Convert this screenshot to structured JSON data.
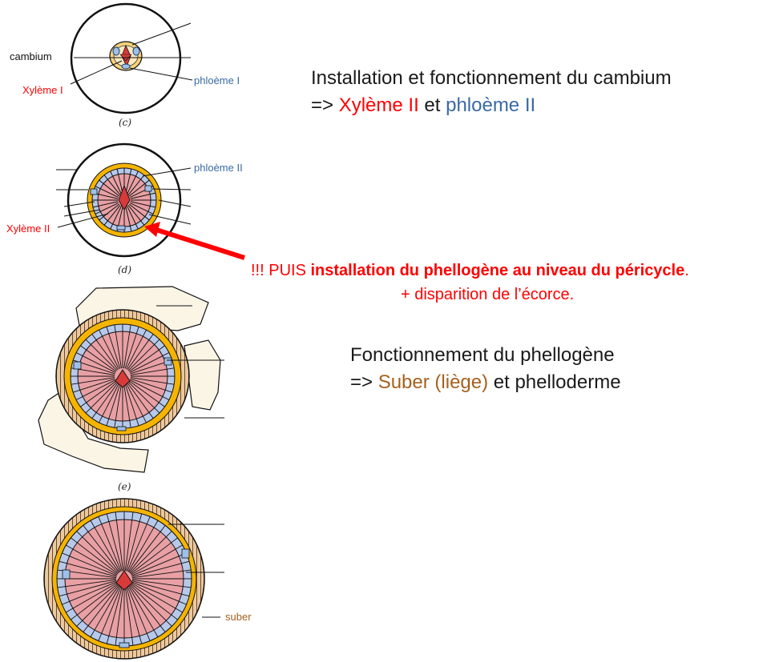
{
  "figures": {
    "c": {
      "caption": "(c)",
      "labels": {
        "cambium": "cambium",
        "xyleme": "Xylème I",
        "phloeme": "phloème I"
      }
    },
    "d": {
      "caption": "(d)",
      "labels": {
        "phloeme": "phloème II",
        "xyleme": "Xylème II"
      }
    },
    "e": {
      "caption": "(e)"
    },
    "f": {
      "labels": {
        "suber": "suber"
      }
    }
  },
  "text": {
    "cambium_line1": "Installation et fonctionnement du cambium",
    "cambium_arrow": "=> ",
    "cambium_xylem": "Xylème II",
    "cambium_et": " et ",
    "cambium_phloem": "phloème II",
    "warn_prefix": "!!! PUIS ",
    "warn_bold": "installation du phellogène au niveau du péricycle",
    "warn_suffix": ".",
    "warn_line2": "+ disparition de l’écorce.",
    "phello_line1": "Fonctionnement du phellogène",
    "phello_arrow": "=> ",
    "phello_suber": "Suber (liège)",
    "phello_rest": " et phelloderme"
  },
  "colors": {
    "xylem": "#ff0000",
    "phloem": "#3a6aa3",
    "suber": "#a5611e",
    "xylem_fill": "#e8a0a4",
    "phloem_fill": "#b7c9ea",
    "cambium_ring": "#f5b400",
    "cortex": "#fbf5e6"
  }
}
